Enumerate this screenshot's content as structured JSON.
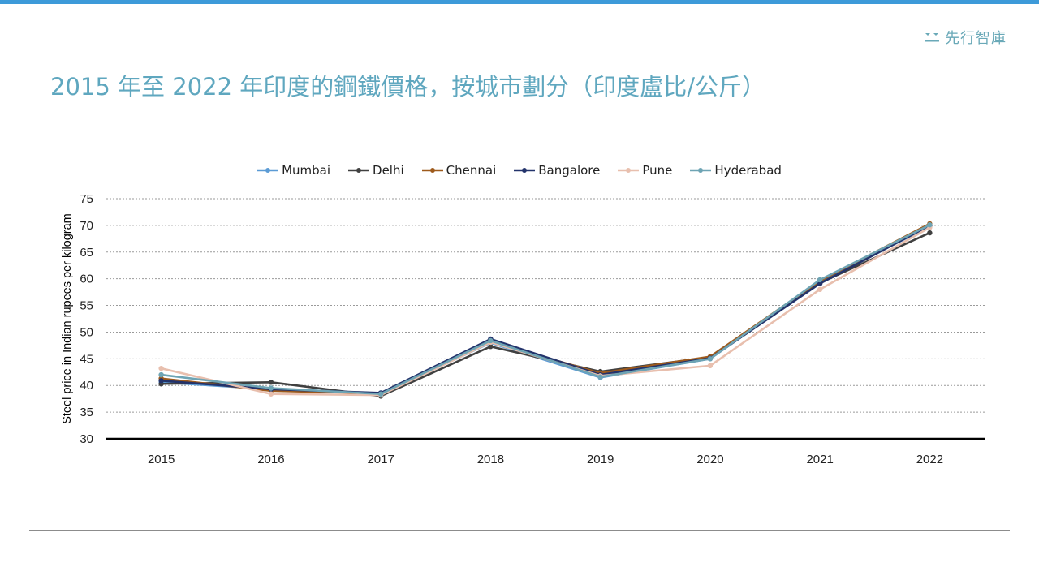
{
  "header": {
    "title": "2015 年至 2022 年印度的鋼鐵價格，按城市劃分（印度盧比/公斤）",
    "brand_name": "先行智庫",
    "brand_icon": "brand-logo-icon"
  },
  "colors": {
    "top_bar": "#3d9ad9",
    "title": "#5fa7bf",
    "gridline": "#9a9a9a",
    "axis": "#000000"
  },
  "chart_data": {
    "type": "line",
    "ylabel": "Steel price in Indian rupees per kilogram",
    "xlabel": "",
    "x": [
      "2015",
      "2016",
      "2017",
      "2018",
      "2019",
      "2020",
      "2021",
      "2022"
    ],
    "ylim": [
      30,
      75
    ],
    "yticks": [
      30,
      35,
      40,
      45,
      50,
      55,
      60,
      65,
      70,
      75
    ],
    "grid": true,
    "legend_position": "top-center",
    "series": [
      {
        "name": "Mumbai",
        "color": "#5b9bd5",
        "values": [
          40.6,
          39.3,
          38.4,
          48.0,
          41.5,
          45.0,
          59.5,
          69.8
        ]
      },
      {
        "name": "Delhi",
        "color": "#404040",
        "values": [
          40.3,
          40.6,
          38.0,
          47.3,
          42.6,
          45.3,
          59.2,
          68.6
        ]
      },
      {
        "name": "Chennai",
        "color": "#9e5a1c",
        "values": [
          41.3,
          39.0,
          38.5,
          48.2,
          42.3,
          45.4,
          59.6,
          70.3
        ]
      },
      {
        "name": "Bangalore",
        "color": "#23336b",
        "values": [
          40.9,
          39.3,
          38.6,
          48.7,
          42.0,
          45.1,
          59.1,
          70.0
        ]
      },
      {
        "name": "Pune",
        "color": "#e8bfae",
        "values": [
          43.2,
          38.4,
          38.2,
          48.1,
          41.8,
          43.7,
          58.0,
          69.6
        ]
      },
      {
        "name": "Hyderabad",
        "color": "#6ea4b4",
        "values": [
          42.0,
          39.5,
          38.4,
          48.4,
          41.6,
          45.0,
          59.8,
          70.1
        ]
      }
    ]
  }
}
